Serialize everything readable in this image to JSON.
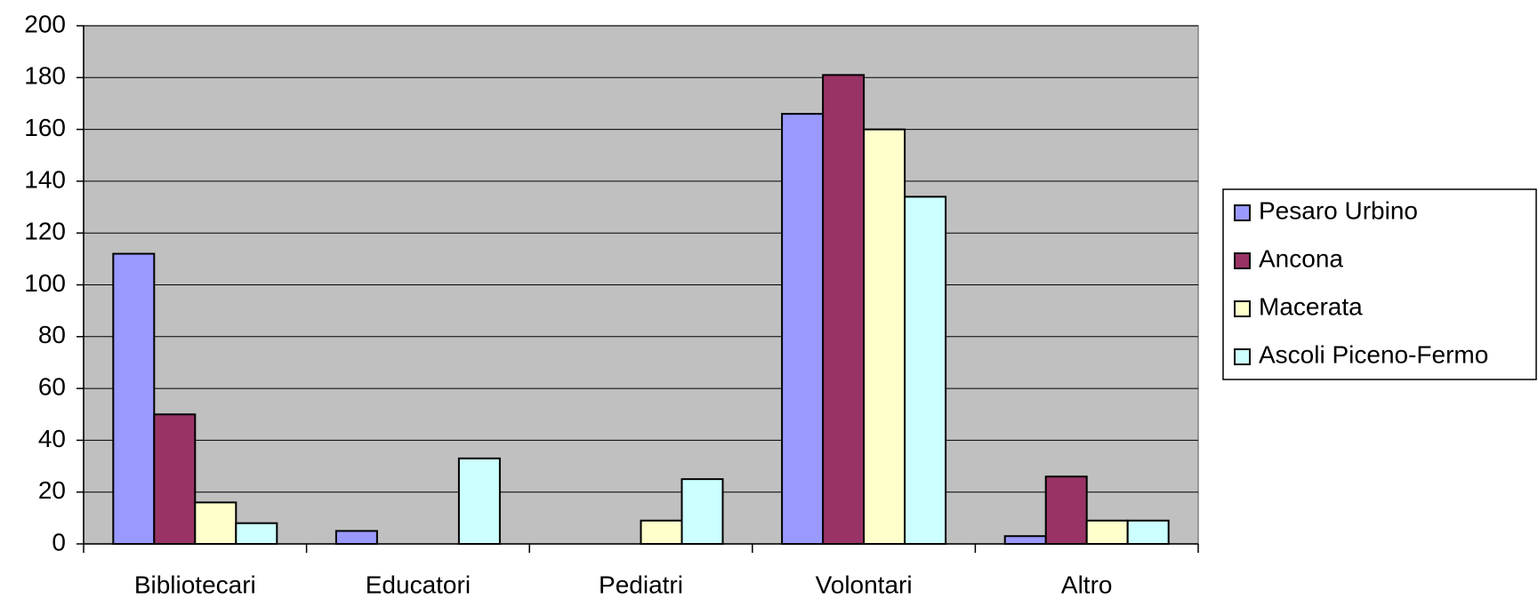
{
  "chart_data": {
    "type": "bar",
    "categories": [
      "Bibliotecari",
      "Educatori",
      "Pediatri",
      "Volontari",
      "Altro"
    ],
    "series": [
      {
        "name": "Pesaro Urbino",
        "color": "#9999ff",
        "values": [
          112,
          5,
          0,
          166,
          3
        ]
      },
      {
        "name": "Ancona",
        "color": "#993366",
        "values": [
          50,
          0,
          0,
          181,
          26
        ]
      },
      {
        "name": "Macerata",
        "color": "#ffffcc",
        "values": [
          16,
          0,
          9,
          160,
          9
        ]
      },
      {
        "name": "Ascoli Piceno-Fermo",
        "color": "#ccffff",
        "values": [
          8,
          33,
          25,
          134,
          9
        ]
      }
    ],
    "ylim": [
      0,
      200
    ],
    "yticks": [
      0,
      20,
      40,
      60,
      80,
      100,
      120,
      140,
      160,
      180,
      200
    ],
    "grid": true,
    "legend": "right",
    "plot_background": "#c0c0c0"
  }
}
